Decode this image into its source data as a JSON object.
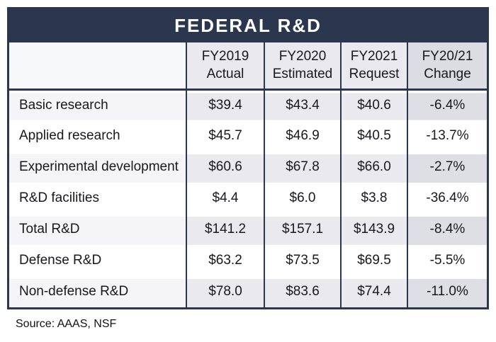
{
  "page": {
    "title_banner": "FEDERAL R&D",
    "source_note": "Source: AAAS, NSF"
  },
  "table": {
    "column_headers": [
      {
        "line1": "FY2019",
        "line2": "Actual"
      },
      {
        "line1": "FY2020",
        "line2": "Estimated"
      },
      {
        "line1": "FY2021",
        "line2": "Request"
      },
      {
        "line1": "FY20/21",
        "line2": "Change"
      }
    ],
    "rows": [
      {
        "label": "Basic research",
        "fy2019_actual": "$39.4",
        "fy2020_estimated": "$43.4",
        "fy2021_request": "$40.6",
        "fy2021_change": "-6.4%"
      },
      {
        "label": "Applied research",
        "fy2019_actual": "$45.7",
        "fy2020_estimated": "$46.9",
        "fy2021_request": "$40.5",
        "fy2021_change": "-13.7%"
      },
      {
        "label": "Experimental development",
        "fy2019_actual": "$60.6",
        "fy2020_estimated": "$67.8",
        "fy2021_request": "$66.0",
        "fy2021_change": "-2.7%"
      },
      {
        "label": "R&D facilities",
        "fy2019_actual": "$4.4",
        "fy2020_estimated": "$6.0",
        "fy2021_request": "$3.8",
        "fy2021_change": "-36.4%"
      },
      {
        "label": "Total R&D",
        "fy2019_actual": "$141.2",
        "fy2020_estimated": "$157.1",
        "fy2021_request": "$143.9",
        "fy2021_change": "-8.4%"
      },
      {
        "label": "Defense R&D",
        "fy2019_actual": "$63.2",
        "fy2020_estimated": "$73.5",
        "fy2021_request": "$69.5",
        "fy2021_change": "-5.5%"
      },
      {
        "label": "Non-defense R&D",
        "fy2019_actual": "$78.0",
        "fy2020_estimated": "$83.6",
        "fy2021_request": "$74.4",
        "fy2021_change": "-11.0%"
      }
    ]
  },
  "colors": {
    "navy": "#2b374f",
    "header_cell_bg": "#e9e9ee",
    "header_change_bg": "#dcdce3",
    "odd_label_bg": "#f5f5f8",
    "odd_value_bg": "#e9e9ee",
    "odd_change_bg": "#dedee5",
    "even_row_bg": "#ffffff",
    "header_label_bg": "#f7f8fa",
    "text": "#18181d",
    "title_text": "#ffffff"
  },
  "chart_data": {
    "type": "table",
    "title": "FEDERAL R&D",
    "units": "billions of U.S. dollars (change column in percent)",
    "row_labels": [
      "Basic research",
      "Applied research",
      "Experimental development",
      "R&D facilities",
      "Total R&D",
      "Defense R&D",
      "Non-defense R&D"
    ],
    "series": [
      {
        "name": "FY2019 Actual",
        "values": [
          39.4,
          45.7,
          60.6,
          4.4,
          141.2,
          63.2,
          78.0
        ]
      },
      {
        "name": "FY2020 Estimated",
        "values": [
          43.4,
          46.9,
          67.8,
          6.0,
          157.1,
          73.5,
          83.6
        ]
      },
      {
        "name": "FY2021 Request",
        "values": [
          40.6,
          40.5,
          66.0,
          3.8,
          143.9,
          69.5,
          74.4
        ]
      },
      {
        "name": "FY20/21 Change (%)",
        "values": [
          -6.4,
          -13.7,
          -2.7,
          -36.4,
          -8.4,
          -5.5,
          -11.0
        ]
      }
    ],
    "source": "Source: AAAS, NSF"
  }
}
